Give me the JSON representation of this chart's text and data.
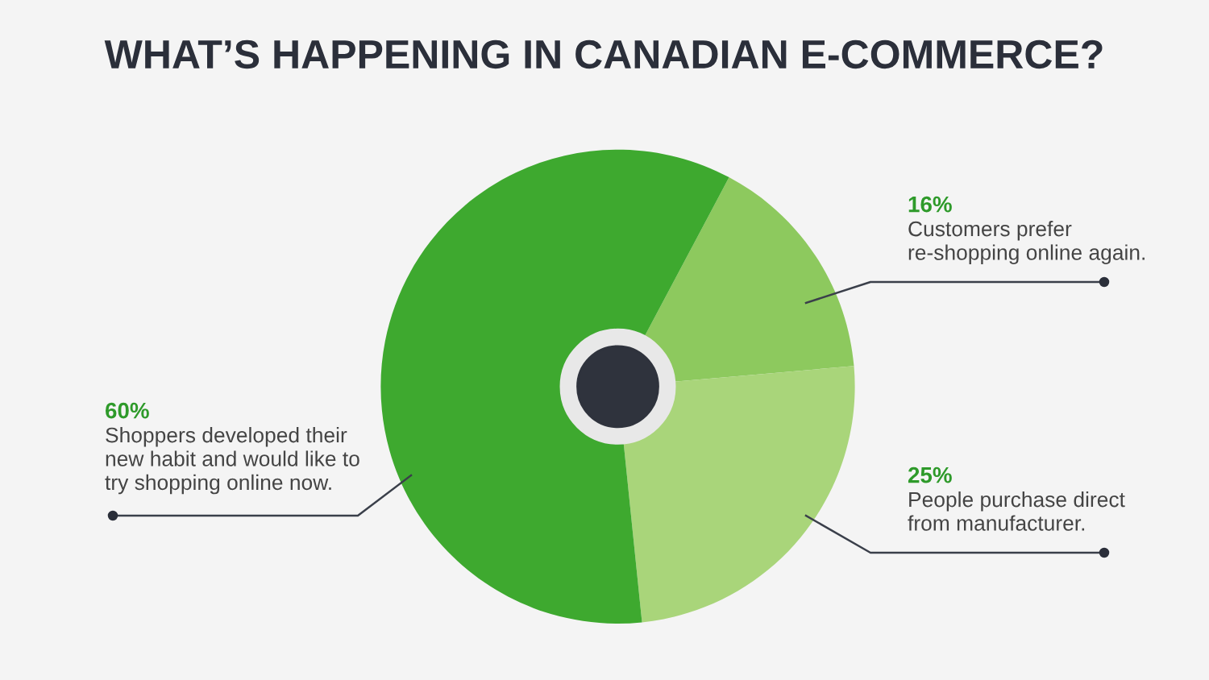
{
  "chart_data": {
    "type": "donut",
    "title": "WHAT’S HAPPENING IN CANADIAN E-COMMERCE?",
    "categories": [
      "Customers prefer\nre-shopping online again.",
      "People purchase direct\nfrom manufacturer.",
      "Shoppers developed their\nnew habit and would like to\ntry shopping online now."
    ],
    "values": [
      16,
      25,
      60
    ],
    "value_labels": [
      "16%",
      "25%",
      "60%"
    ],
    "colors": [
      "#8dc95e",
      "#a9d57a",
      "#3ea92f"
    ]
  }
}
